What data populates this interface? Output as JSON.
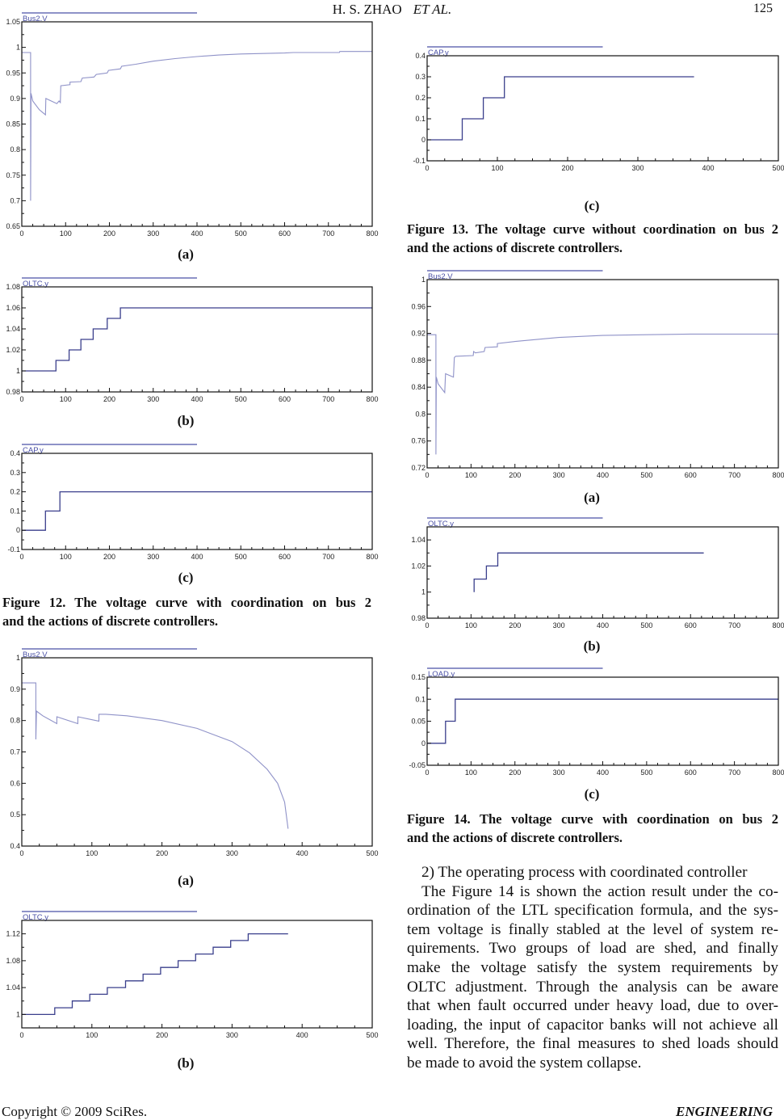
{
  "header": {
    "authors": "H. S. ZHAO",
    "etal": "ET AL.",
    "page_number": "125"
  },
  "footer": {
    "copyright": "Copyright © 2009 SciRes.",
    "journal": "ENGINEERING"
  },
  "subfig_labels": {
    "a": "(a)",
    "b": "(b)",
    "c": "(c)"
  },
  "captions": {
    "fig12": [
      "Figure 12. The voltage curve with coordination on bus 2",
      "and the actions of discrete controllers."
    ],
    "fig13": [
      "Figure 13. The voltage curve without coordination on bus 2",
      "and the actions of discrete controllers."
    ],
    "fig14": [
      "Figure 14. The voltage curve with coordination on bus 2",
      "and the actions of discrete controllers."
    ]
  },
  "body": {
    "heading": "2) The operating process with coordinated controller",
    "lines": [
      "The Figure 14 is shown the action result under the co-",
      "ordination of the LTL specification formula, and the sys-",
      "tem voltage is finally stabled at the level of system re-",
      "quirements. Two groups of load are shed, and finally",
      "make the voltage satisfy the system requirements by",
      "OLTC adjustment. Through the analysis can be aware",
      "that when fault occurred under heavy load, due to over-",
      "loading, the input of capacitor banks will not achieve all",
      "well. Therefore, the final measures to shed loads should",
      "be made to avoid the system collapse."
    ]
  },
  "colors": {
    "curve": "#3a3f8c",
    "curve_light": "#8f92c8",
    "legend": "#4a50a6",
    "axis": "#111111"
  },
  "chart_data": [
    {
      "id": "fig12a",
      "type": "line",
      "legend": "Bus2.V",
      "xlim": [
        0,
        800
      ],
      "ylim": [
        0.65,
        1.05
      ],
      "xticks": [
        0,
        100,
        200,
        300,
        400,
        500,
        600,
        700,
        800
      ],
      "yticks": [
        0.65,
        0.7,
        0.75,
        0.8,
        0.85,
        0.9,
        0.95,
        1,
        1.05
      ],
      "ytick_labels": [
        "0.65",
        "0.7",
        "0.75",
        "0.8",
        "0.85",
        "0.9",
        "0.95",
        "1",
        "1.05"
      ],
      "light": true,
      "points": [
        [
          0,
          0.99
        ],
        [
          20,
          0.99
        ],
        [
          20,
          0.7
        ],
        [
          21,
          0.91
        ],
        [
          25,
          0.895
        ],
        [
          40,
          0.878
        ],
        [
          54,
          0.868
        ],
        [
          55,
          0.9
        ],
        [
          80,
          0.89
        ],
        [
          85,
          0.895
        ],
        [
          88,
          0.892
        ],
        [
          89,
          0.925
        ],
        [
          110,
          0.927
        ],
        [
          110,
          0.932
        ],
        [
          135,
          0.933
        ],
        [
          138,
          0.94
        ],
        [
          165,
          0.942
        ],
        [
          170,
          0.947
        ],
        [
          195,
          0.95
        ],
        [
          198,
          0.955
        ],
        [
          225,
          0.958
        ],
        [
          228,
          0.963
        ],
        [
          260,
          0.967
        ],
        [
          300,
          0.973
        ],
        [
          350,
          0.978
        ],
        [
          400,
          0.982
        ],
        [
          450,
          0.985
        ],
        [
          500,
          0.987
        ],
        [
          600,
          0.989
        ],
        [
          620,
          0.99
        ],
        [
          725,
          0.99
        ],
        [
          726,
          0.992
        ],
        [
          800,
          0.992
        ]
      ]
    },
    {
      "id": "fig12b",
      "type": "line",
      "legend": "OLTC.y",
      "xlim": [
        0,
        800
      ],
      "ylim": [
        0.98,
        1.08
      ],
      "xticks": [
        0,
        100,
        200,
        300,
        400,
        500,
        600,
        700,
        800
      ],
      "yticks": [
        0.98,
        1,
        1.02,
        1.04,
        1.06,
        1.08
      ],
      "ytick_labels": [
        "0.98",
        "1",
        "1.02",
        "1.04",
        "1.06",
        "1.08"
      ],
      "points": [
        [
          0,
          1
        ],
        [
          78,
          1
        ],
        [
          78,
          1.01
        ],
        [
          108,
          1.01
        ],
        [
          108,
          1.02
        ],
        [
          135,
          1.02
        ],
        [
          135,
          1.03
        ],
        [
          163,
          1.03
        ],
        [
          163,
          1.04
        ],
        [
          195,
          1.04
        ],
        [
          195,
          1.05
        ],
        [
          225,
          1.05
        ],
        [
          225,
          1.06
        ],
        [
          800,
          1.06
        ]
      ]
    },
    {
      "id": "fig12c",
      "type": "line",
      "legend": "CAP.y",
      "xlim": [
        0,
        800
      ],
      "ylim": [
        -0.1,
        0.4
      ],
      "xticks": [
        0,
        100,
        200,
        300,
        400,
        500,
        600,
        700,
        800
      ],
      "yticks": [
        -0.1,
        0,
        0.1,
        0.2,
        0.3,
        0.4
      ],
      "ytick_labels": [
        "-0.1",
        "0",
        "0.1",
        "0.2",
        "0.3",
        "0.4"
      ],
      "points": [
        [
          0,
          0
        ],
        [
          54,
          0
        ],
        [
          54,
          0.1
        ],
        [
          87,
          0.1
        ],
        [
          87,
          0.2
        ],
        [
          800,
          0.2
        ]
      ]
    },
    {
      "id": "fig13a",
      "type": "line",
      "legend": "Bus2.V",
      "xlim": [
        0,
        500
      ],
      "ylim": [
        0.4,
        1
      ],
      "xticks": [
        0,
        100,
        200,
        300,
        400,
        500
      ],
      "yticks": [
        0.4,
        0.5,
        0.6,
        0.7,
        0.8,
        0.9,
        1
      ],
      "ytick_labels": [
        "0.4",
        "0.5",
        "0.6",
        "0.7",
        "0.8",
        "0.9",
        "1"
      ],
      "light": true,
      "points": [
        [
          0,
          0.92
        ],
        [
          20,
          0.92
        ],
        [
          20,
          0.74
        ],
        [
          21,
          0.83
        ],
        [
          30,
          0.815
        ],
        [
          50,
          0.79
        ],
        [
          50,
          0.812
        ],
        [
          80,
          0.79
        ],
        [
          80,
          0.812
        ],
        [
          110,
          0.798
        ],
        [
          110,
          0.82
        ],
        [
          120,
          0.82
        ],
        [
          150,
          0.815
        ],
        [
          200,
          0.8
        ],
        [
          250,
          0.775
        ],
        [
          300,
          0.733
        ],
        [
          325,
          0.697
        ],
        [
          350,
          0.645
        ],
        [
          365,
          0.6
        ],
        [
          375,
          0.54
        ],
        [
          380,
          0.455
        ]
      ]
    },
    {
      "id": "fig13b",
      "type": "line",
      "legend": "OLTC.y",
      "xlim": [
        0,
        500
      ],
      "ylim": [
        0.98,
        1.14
      ],
      "xticks": [
        0,
        100,
        200,
        300,
        400,
        500
      ],
      "yticks": [
        1,
        1.04,
        1.08,
        1.12
      ],
      "ytick_labels": [
        "1",
        "1.04",
        "1.08",
        "1.12"
      ],
      "points": [
        [
          0,
          1
        ],
        [
          47,
          1
        ],
        [
          47,
          1.01
        ],
        [
          72,
          1.01
        ],
        [
          72,
          1.02
        ],
        [
          97,
          1.02
        ],
        [
          97,
          1.03
        ],
        [
          122,
          1.03
        ],
        [
          122,
          1.04
        ],
        [
          148,
          1.04
        ],
        [
          148,
          1.05
        ],
        [
          173,
          1.05
        ],
        [
          173,
          1.06
        ],
        [
          198,
          1.06
        ],
        [
          198,
          1.07
        ],
        [
          223,
          1.07
        ],
        [
          223,
          1.08
        ],
        [
          248,
          1.08
        ],
        [
          248,
          1.09
        ],
        [
          273,
          1.09
        ],
        [
          273,
          1.1
        ],
        [
          298,
          1.1
        ],
        [
          298,
          1.11
        ],
        [
          323,
          1.11
        ],
        [
          323,
          1.12
        ],
        [
          380,
          1.12
        ]
      ]
    },
    {
      "id": "fig13c",
      "type": "line",
      "legend": "CAP.y",
      "xlim": [
        0,
        500
      ],
      "ylim": [
        -0.1,
        0.4
      ],
      "xticks": [
        0,
        100,
        200,
        300,
        400,
        500
      ],
      "yticks": [
        -0.1,
        0,
        0.1,
        0.2,
        0.3,
        0.4
      ],
      "ytick_labels": [
        "-0.1",
        "0",
        "0.1",
        "0.2",
        "0.3",
        "0.4"
      ],
      "points": [
        [
          0,
          0
        ],
        [
          50,
          0
        ],
        [
          50,
          0.1
        ],
        [
          80,
          0.1
        ],
        [
          80,
          0.2
        ],
        [
          110,
          0.2
        ],
        [
          110,
          0.3
        ],
        [
          380,
          0.3
        ]
      ]
    },
    {
      "id": "fig14a",
      "type": "line",
      "legend": "Bus2.V",
      "xlim": [
        0,
        800
      ],
      "ylim": [
        0.72,
        1
      ],
      "xticks": [
        0,
        100,
        200,
        300,
        400,
        500,
        600,
        700,
        800
      ],
      "yticks": [
        0.72,
        0.76,
        0.8,
        0.84,
        0.88,
        0.92,
        0.96,
        1
      ],
      "ytick_labels": [
        "0.72",
        "0.76",
        "0.8",
        "0.84",
        "0.88",
        "0.92",
        "0.96",
        "1"
      ],
      "light": true,
      "points": [
        [
          0,
          0.918
        ],
        [
          20,
          0.918
        ],
        [
          20,
          0.74
        ],
        [
          21,
          0.855
        ],
        [
          25,
          0.845
        ],
        [
          40,
          0.832
        ],
        [
          42,
          0.86
        ],
        [
          60,
          0.855
        ],
        [
          62,
          0.884
        ],
        [
          65,
          0.886
        ],
        [
          105,
          0.887
        ],
        [
          106,
          0.893
        ],
        [
          110,
          0.891
        ],
        [
          130,
          0.893
        ],
        [
          132,
          0.899
        ],
        [
          160,
          0.9
        ],
        [
          160,
          0.905
        ],
        [
          200,
          0.908
        ],
        [
          250,
          0.911
        ],
        [
          300,
          0.914
        ],
        [
          400,
          0.917
        ],
        [
          500,
          0.918
        ],
        [
          600,
          0.919
        ],
        [
          630,
          0.919
        ],
        [
          800,
          0.919
        ]
      ]
    },
    {
      "id": "fig14b",
      "type": "line",
      "legend": "OLTC.y",
      "xlim": [
        0,
        800
      ],
      "ylim": [
        0.98,
        1.05
      ],
      "xticks": [
        0,
        100,
        200,
        300,
        400,
        500,
        600,
        700,
        800
      ],
      "yticks": [
        0.98,
        1,
        1.02,
        1.04
      ],
      "ytick_labels": [
        "0.98",
        "1",
        "1.02",
        "1.04"
      ],
      "points": [
        [
          107,
          1
        ],
        [
          107,
          1.01
        ],
        [
          135,
          1.01
        ],
        [
          135,
          1.02
        ],
        [
          161,
          1.02
        ],
        [
          161,
          1.03
        ],
        [
          630,
          1.03
        ]
      ]
    },
    {
      "id": "fig14c",
      "type": "line",
      "legend": "LOAD.y",
      "xlim": [
        0,
        800
      ],
      "ylim": [
        -0.05,
        0.15
      ],
      "xticks": [
        0,
        100,
        200,
        300,
        400,
        500,
        600,
        700,
        800
      ],
      "yticks": [
        -0.05,
        0,
        0.05,
        0.1,
        0.15
      ],
      "ytick_labels": [
        "-0.05",
        "0",
        "0.05",
        "0.1",
        "0.15"
      ],
      "points": [
        [
          0,
          0
        ],
        [
          42,
          0
        ],
        [
          42,
          0.05
        ],
        [
          64,
          0.05
        ],
        [
          64,
          0.1
        ],
        [
          800,
          0.1
        ]
      ]
    }
  ]
}
